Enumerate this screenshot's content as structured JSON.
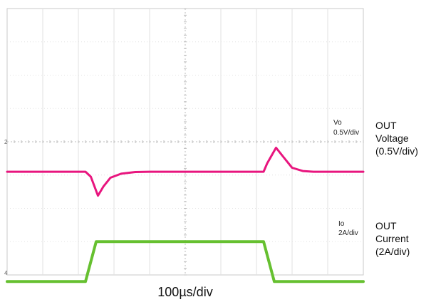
{
  "chart_data": {
    "type": "line",
    "x_divisions": 10,
    "y_divisions": 8,
    "grid": true,
    "time_base": "100µs/div",
    "series": [
      {
        "name": "Vo",
        "scale": "0.5V/div",
        "color": "#e8157e",
        "points": [
          [
            0,
            0
          ],
          [
            2.2,
            0
          ],
          [
            2.35,
            -0.15
          ],
          [
            2.55,
            -0.72
          ],
          [
            2.7,
            -0.45
          ],
          [
            2.9,
            -0.18
          ],
          [
            3.2,
            -0.06
          ],
          [
            3.6,
            -0.01
          ],
          [
            4,
            0
          ],
          [
            7.2,
            0
          ],
          [
            7.3,
            0.25
          ],
          [
            7.55,
            0.72
          ],
          [
            7.75,
            0.45
          ],
          [
            8,
            0.12
          ],
          [
            8.3,
            0.02
          ],
          [
            8.6,
            0
          ],
          [
            10,
            0
          ]
        ]
      },
      {
        "name": "Io",
        "scale": "2A/div",
        "color": "#66c030",
        "points": [
          [
            0,
            0
          ],
          [
            2.2,
            0
          ],
          [
            2.5,
            1.0
          ],
          [
            7.2,
            1.0
          ],
          [
            7.5,
            0
          ],
          [
            10,
            0
          ]
        ]
      }
    ]
  },
  "trace_labels": {
    "vo": {
      "name": "Vo",
      "scale": "0.5V/div"
    },
    "io": {
      "name": "Io",
      "scale": "2A/div"
    }
  },
  "side_labels": {
    "voltage": {
      "line1": "OUT",
      "line2": "Voltage",
      "line3": "(0.5V/div)"
    },
    "current": {
      "line1": "OUT",
      "line2": "Current",
      "line3": "(2A/div)"
    }
  },
  "time_label": "100µs/div"
}
